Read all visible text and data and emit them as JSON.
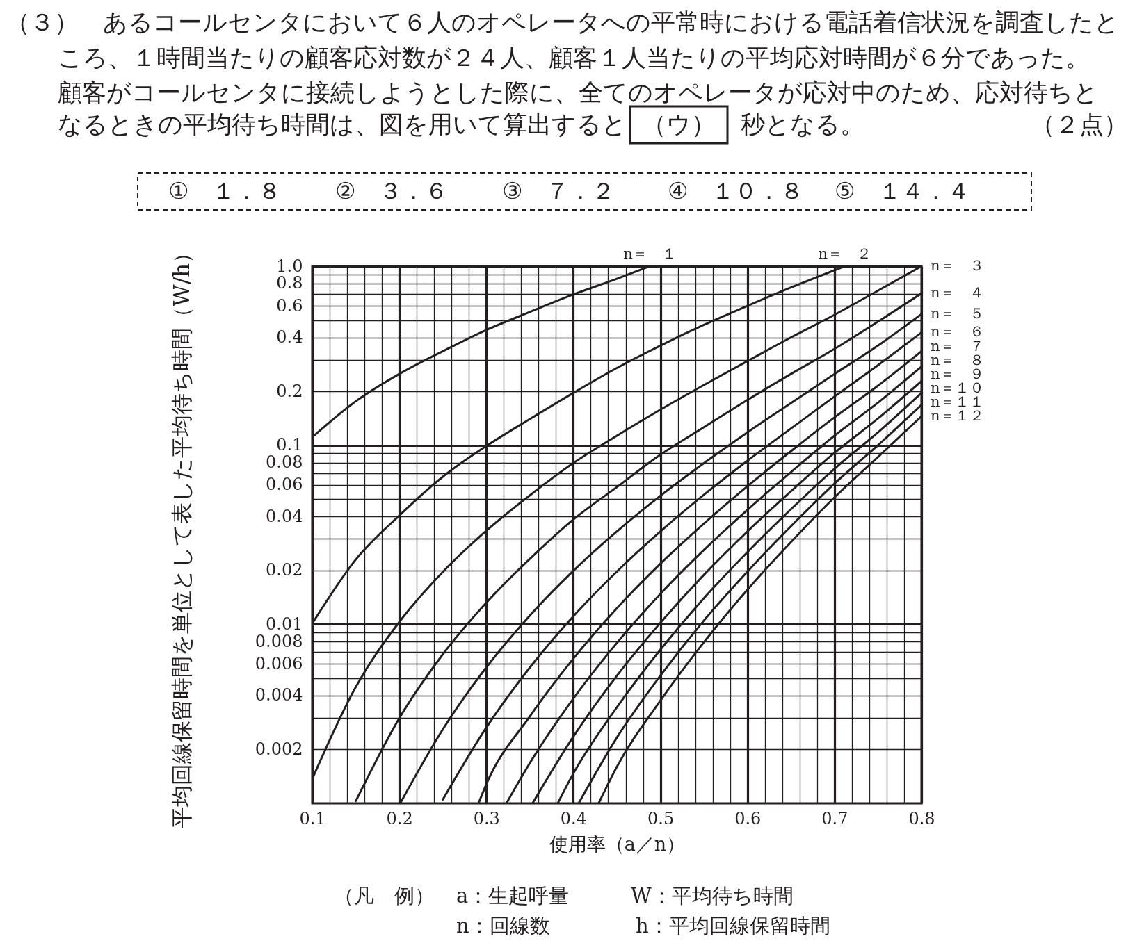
{
  "chart_data": {
    "type": "line",
    "xlabel": "使用率（a／n）",
    "ylabel": "平均回線保留時間を単位として表した平均待ち時間（W/h）",
    "annotations": [
      "（３）　あるコールセンタにおいて６人のオペレータへの平常時における電話着信状況を調査したと",
      "ころ、１時間当たりの顧客応対数が２４人、顧客１人当たりの平均応対時間が６分であった。",
      "顧客がコールセンタに接続しようとした際に、全てのオペレータが応対中のため、応対待ちと",
      "なるときの平均待ち時間は、図を用いて算出すると",
      "（ウ）",
      "秒となる。",
      "（２点）",
      "①　１．８",
      "②　３．６",
      "③　７．２",
      "④　１０．８",
      "⑤　１４．４",
      "（凡　例）",
      "a：生起呼量",
      "W：平均待ち時間",
      "n：回線数",
      "h：平均回線保留時間"
    ],
    "xlim": [
      0.1,
      0.8
    ],
    "ylim": [
      0.001,
      1.0
    ],
    "log": "y",
    "grid": true,
    "xticks": [
      0.1,
      {
        "value": 0.12,
        "label": null
      },
      {
        "value": 0.14,
        "label": null
      },
      {
        "value": 0.16,
        "label": null
      },
      {
        "value": 0.18,
        "label": null
      },
      0.2,
      {
        "value": 0.22,
        "label": null
      },
      {
        "value": 0.24,
        "label": null
      },
      {
        "value": 0.26,
        "label": null
      },
      {
        "value": 0.28,
        "label": null
      },
      0.3,
      {
        "value": 0.32,
        "label": null
      },
      {
        "value": 0.34,
        "label": null
      },
      {
        "value": 0.36,
        "label": null
      },
      {
        "value": 0.38,
        "label": null
      },
      0.4,
      {
        "value": 0.42,
        "label": null
      },
      {
        "value": 0.44,
        "label": null
      },
      {
        "value": 0.46,
        "label": null
      },
      {
        "value": 0.48,
        "label": null
      },
      0.5,
      {
        "value": 0.52,
        "label": null
      },
      {
        "value": 0.54,
        "label": null
      },
      {
        "value": 0.56,
        "label": null
      },
      {
        "value": 0.58,
        "label": null
      },
      0.6,
      {
        "value": 0.62,
        "label": null
      },
      {
        "value": 0.64,
        "label": null
      },
      {
        "value": 0.66,
        "label": null
      },
      {
        "value": 0.68,
        "label": null
      },
      0.7,
      {
        "value": 0.72,
        "label": null
      },
      {
        "value": 0.74,
        "label": null
      },
      {
        "value": 0.76,
        "label": null
      },
      {
        "value": 0.78,
        "label": null
      },
      0.8
    ],
    "yticks": [
      0.002,
      {
        "value": 0.003,
        "label": null
      },
      0.004,
      {
        "value": 0.005,
        "label": null
      },
      0.006,
      {
        "value": 0.007,
        "label": null
      },
      0.008,
      {
        "value": 0.009,
        "label": null
      },
      0.01,
      0.02,
      {
        "value": 0.03,
        "label": null
      },
      0.04,
      {
        "value": 0.05,
        "label": null
      },
      0.06,
      {
        "value": 0.07,
        "label": null
      },
      0.08,
      {
        "value": 0.09,
        "label": null
      },
      0.1,
      0.2,
      {
        "value": 0.3,
        "label": null
      },
      0.4,
      {
        "value": 0.5,
        "label": null
      },
      0.6,
      {
        "value": 0.7,
        "label": null
      },
      0.8,
      {
        "value": 0.9,
        "label": null
      },
      {
        "value": 1.0,
        "label": "1.0"
      }
    ],
    "series": [
      {
        "name": "n＝　１",
        "color": "#231f20",
        "x": [
          0.1,
          0.15,
          0.2,
          0.25,
          0.3,
          0.35,
          0.4,
          0.45,
          0.488
        ],
        "values": [
          0.111,
          0.176,
          0.25,
          0.335,
          0.44,
          0.555,
          0.695,
          0.85,
          1.0
        ]
      },
      {
        "name": "n＝　２",
        "color": "#231f20",
        "x": [
          0.1,
          0.15,
          0.2,
          0.25,
          0.3,
          0.35,
          0.4,
          0.45,
          0.5,
          0.55,
          0.6,
          0.65,
          0.712
        ],
        "values": [
          0.0101,
          0.023,
          0.0405,
          0.0667,
          0.099,
          0.14,
          0.196,
          0.27,
          0.36,
          0.47,
          0.6,
          0.76,
          1.0
        ]
      },
      {
        "name": "n＝　３",
        "color": "#231f20",
        "x": [
          0.1,
          0.15,
          0.2,
          0.25,
          0.3,
          0.35,
          0.4,
          0.45,
          0.5,
          0.55,
          0.6,
          0.65,
          0.7,
          0.75,
          0.8
        ],
        "values": [
          0.00137,
          0.00447,
          0.0103,
          0.0196,
          0.0333,
          0.0525,
          0.0795,
          0.113,
          0.158,
          0.217,
          0.295,
          0.4,
          0.535,
          0.73,
          1.0
        ]
      },
      {
        "name": "n＝　４",
        "color": "#231f20",
        "x": [
          0.15,
          0.2,
          0.25,
          0.3,
          0.35,
          0.4,
          0.45,
          0.5,
          0.55,
          0.6,
          0.65,
          0.7,
          0.75,
          0.8
        ],
        "values": [
          0.00103,
          0.00299,
          0.0068,
          0.0132,
          0.0232,
          0.0385,
          0.0584,
          0.0885,
          0.126,
          0.179,
          0.25,
          0.345,
          0.49,
          0.705
        ]
      },
      {
        "name": "n＝　５",
        "color": "#231f20",
        "x": [
          0.201,
          0.25,
          0.3,
          0.35,
          0.4,
          0.45,
          0.5,
          0.55,
          0.6,
          0.65,
          0.7,
          0.75,
          0.8
        ],
        "values": [
          0.001,
          0.00259,
          0.00575,
          0.0112,
          0.0199,
          0.033,
          0.0522,
          0.0794,
          0.118,
          0.172,
          0.25,
          0.36,
          0.54
        ]
      },
      {
        "name": "n＝　６",
        "color": "#231f20",
        "x": [
          0.25,
          0.3,
          0.35,
          0.4,
          0.45,
          0.5,
          0.55,
          0.6,
          0.65,
          0.7,
          0.75,
          0.8
        ],
        "values": [
          0.00105,
          0.00265,
          0.00574,
          0.0111,
          0.0197,
          0.033,
          0.0529,
          0.0819,
          0.124,
          0.187,
          0.28,
          0.426
        ]
      },
      {
        "name": "n＝　７",
        "color": "#231f20",
        "x": [
          0.291,
          0.3,
          0.35,
          0.4,
          0.45,
          0.5,
          0.55,
          0.6,
          0.65,
          0.7,
          0.75,
          0.8
        ],
        "values": [
          0.001,
          0.00128,
          0.00306,
          0.00644,
          0.0123,
          0.0218,
          0.0365,
          0.059,
          0.0926,
          0.143,
          0.215,
          0.335
        ]
      },
      {
        "name": "n＝　８",
        "color": "#231f20",
        "x": [
          0.323,
          0.35,
          0.4,
          0.45,
          0.5,
          0.55,
          0.6,
          0.65,
          0.7,
          0.75,
          0.8
        ],
        "values": [
          0.001,
          0.00168,
          0.00385,
          0.00787,
          0.0148,
          0.026,
          0.0436,
          0.0708,
          0.113,
          0.173,
          0.275
        ]
      },
      {
        "name": "n＝　９",
        "color": "#231f20",
        "x": [
          0.353,
          0.4,
          0.45,
          0.5,
          0.55,
          0.6,
          0.65,
          0.7,
          0.75,
          0.8
        ],
        "values": [
          0.001,
          0.00236,
          0.00516,
          0.0102,
          0.0189,
          0.033,
          0.0553,
          0.0906,
          0.141,
          0.228
        ]
      },
      {
        "name": "n＝１０",
        "color": "#231f20",
        "x": [
          0.382,
          0.4,
          0.45,
          0.5,
          0.55,
          0.6,
          0.65,
          0.7,
          0.75,
          0.8
        ],
        "values": [
          0.001,
          0.00147,
          0.00344,
          0.00722,
          0.014,
          0.0253,
          0.0439,
          0.0739,
          0.118,
          0.196
        ]
      },
      {
        "name": "n＝１１",
        "color": "#231f20",
        "x": [
          0.406,
          0.45,
          0.5,
          0.55,
          0.6,
          0.65,
          0.7,
          0.75,
          0.8
        ],
        "values": [
          0.001,
          0.00233,
          0.00517,
          0.0105,
          0.0197,
          0.0353,
          0.0611,
          0.1,
          0.168
        ]
      },
      {
        "name": "n＝１２",
        "color": "#231f20",
        "x": [
          0.429,
          0.45,
          0.5,
          0.55,
          0.6,
          0.65,
          0.7,
          0.75,
          0.8
        ],
        "values": [
          0.001,
          0.0016,
          0.00375,
          0.00794,
          0.0156,
          0.0288,
          0.0511,
          0.086,
          0.145
        ]
      }
    ]
  }
}
